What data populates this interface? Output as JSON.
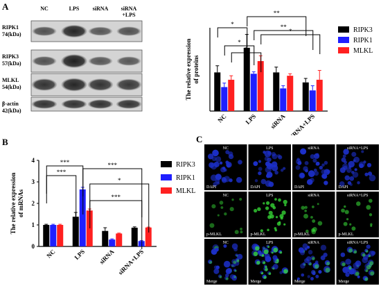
{
  "panels": {
    "a": "A",
    "b": "B",
    "c": "C"
  },
  "western_blot": {
    "lanes": [
      "NC",
      "LPS",
      "siRNA",
      "siRNA\n+LPS"
    ],
    "rows": [
      {
        "name": "RIPK1",
        "kda": "74(kDa)",
        "intensity": [
          0.55,
          0.9,
          0.5,
          0.55
        ]
      },
      {
        "name": "RIPK3",
        "kda": "57(kDa)",
        "intensity": [
          0.55,
          0.95,
          0.5,
          0.5
        ]
      },
      {
        "name": "MLKL",
        "kda": "54(kDa)",
        "intensity": [
          0.8,
          0.9,
          0.8,
          0.75
        ]
      },
      {
        "name": "β-actin",
        "kda": "42(kDa)",
        "intensity": [
          0.8,
          0.8,
          0.8,
          0.8
        ]
      }
    ]
  },
  "chart_data": [
    {
      "type": "bar",
      "ylabel": "The relative expression\nof proteins",
      "categories": [
        "NC",
        "LPS",
        "siRNA",
        "siRNA+LPS"
      ],
      "ylim": [
        0,
        1.25
      ],
      "series": [
        {
          "name": "RIPK3",
          "color": "#000000",
          "values": [
            0.58,
            0.95,
            0.58,
            0.43
          ],
          "errors": [
            0.1,
            0.2,
            0.08,
            0.06
          ]
        },
        {
          "name": "RIPK1",
          "color": "#1f1fff",
          "values": [
            0.36,
            0.56,
            0.34,
            0.31
          ],
          "errors": [
            0.06,
            0.03,
            0.04,
            0.07
          ]
        },
        {
          "name": "MLKL",
          "color": "#ff2020",
          "values": [
            0.47,
            0.75,
            0.53,
            0.47
          ],
          "errors": [
            0.06,
            0.08,
            0.03,
            0.14
          ]
        }
      ],
      "significance": [
        "*",
        "*",
        "*",
        "*",
        "**",
        "**"
      ]
    },
    {
      "type": "bar",
      "ylabel": "The relative expression\nof mRNAs",
      "categories": [
        "NC",
        "LPS",
        "siRNA",
        "siRNA+LPS"
      ],
      "ylim": [
        0,
        4
      ],
      "yticks": [
        "0",
        "1",
        "2",
        "3",
        "4"
      ],
      "series": [
        {
          "name": "RIPK3",
          "color": "#000000",
          "values": [
            1.0,
            1.38,
            0.72,
            0.87
          ],
          "errors": [
            0.03,
            0.2,
            0.15,
            0.04
          ]
        },
        {
          "name": "RIPK1",
          "color": "#1f1fff",
          "values": [
            1.0,
            2.65,
            0.32,
            0.25
          ],
          "errors": [
            0.03,
            0.1,
            0.03,
            0.02
          ]
        },
        {
          "name": "MLKL",
          "color": "#ff2020",
          "values": [
            1.0,
            1.67,
            0.6,
            0.88
          ],
          "errors": [
            0.03,
            0.07,
            0.02,
            0.02
          ]
        }
      ],
      "significance": [
        "***",
        "***",
        "***",
        "*",
        "***"
      ]
    }
  ],
  "microscopy": {
    "columns": [
      "NC",
      "LPS",
      "siRNA",
      "siRNA+LPS"
    ],
    "rows": [
      {
        "stain": "DAPI",
        "color": "blue"
      },
      {
        "stain": "p-MLKL",
        "color": "green"
      },
      {
        "stain": "Merge",
        "color": "merge"
      }
    ]
  }
}
